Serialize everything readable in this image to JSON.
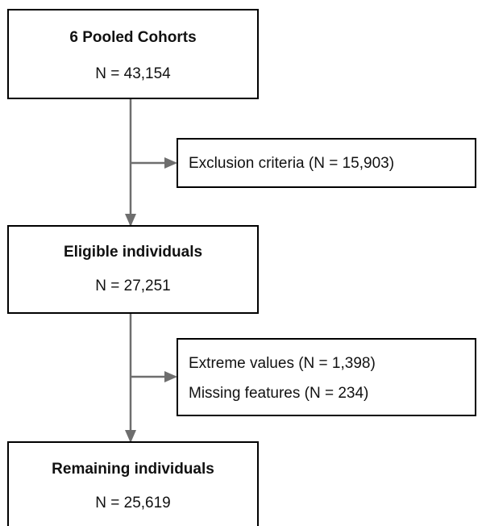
{
  "nodes": [
    {
      "title": "6 Pooled Cohorts",
      "count": "N = 43,154"
    },
    {
      "title": "Eligible individuals",
      "count": "N = 27,251"
    },
    {
      "title": "Remaining individuals",
      "count": "N = 25,619"
    }
  ],
  "exclusions": [
    {
      "lines": [
        "Exclusion criteria (N = 15,903)"
      ]
    },
    {
      "lines": [
        "Extreme values (N = 1,398)",
        "Missing features (N = 234)"
      ]
    }
  ]
}
